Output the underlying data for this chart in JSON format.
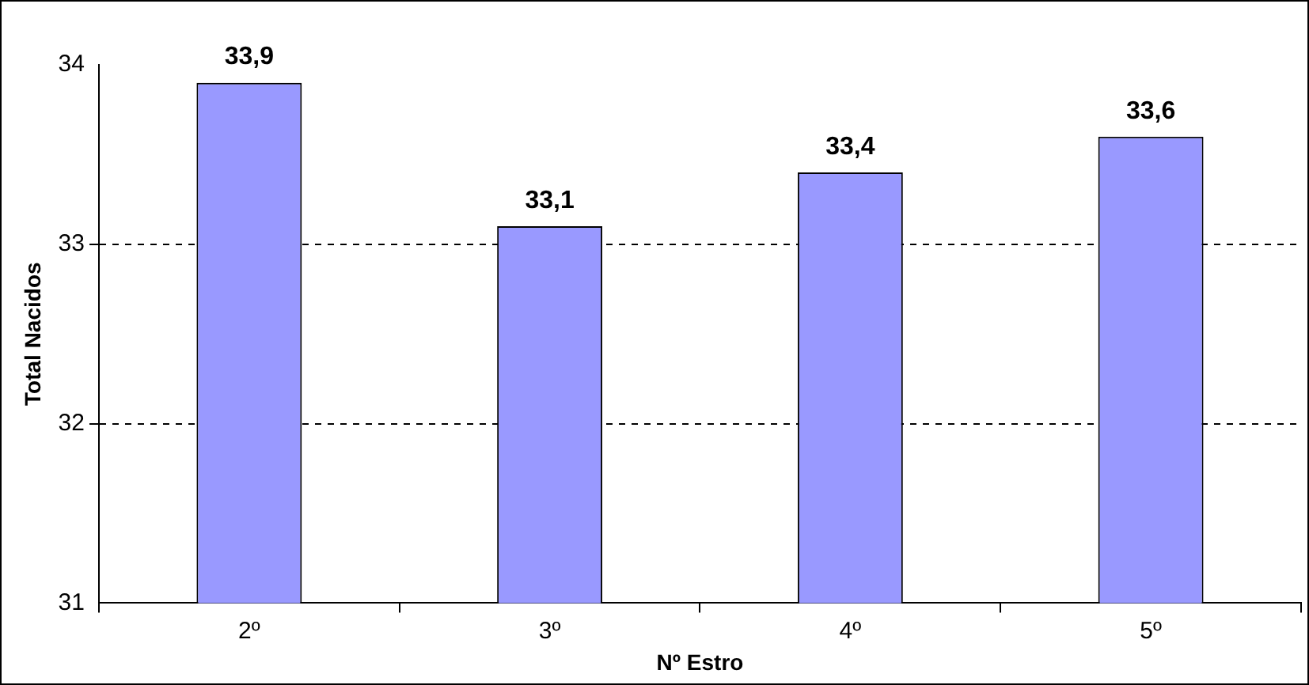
{
  "chart_data": {
    "type": "bar",
    "xlabel": "Nº Estro",
    "ylabel": "Total Nacidos",
    "categories": [
      "2º",
      "3º",
      "4º",
      "5º"
    ],
    "values": [
      33.9,
      33.1,
      33.4,
      33.6
    ],
    "value_labels": [
      "33,9",
      "33,1",
      "33,4",
      "33,6"
    ],
    "color": "#9999ff",
    "ylim": [
      31,
      34
    ],
    "yticks": [
      31,
      32,
      33,
      34
    ],
    "grid": "y",
    "line_style": "dashed",
    "legend": false
  }
}
